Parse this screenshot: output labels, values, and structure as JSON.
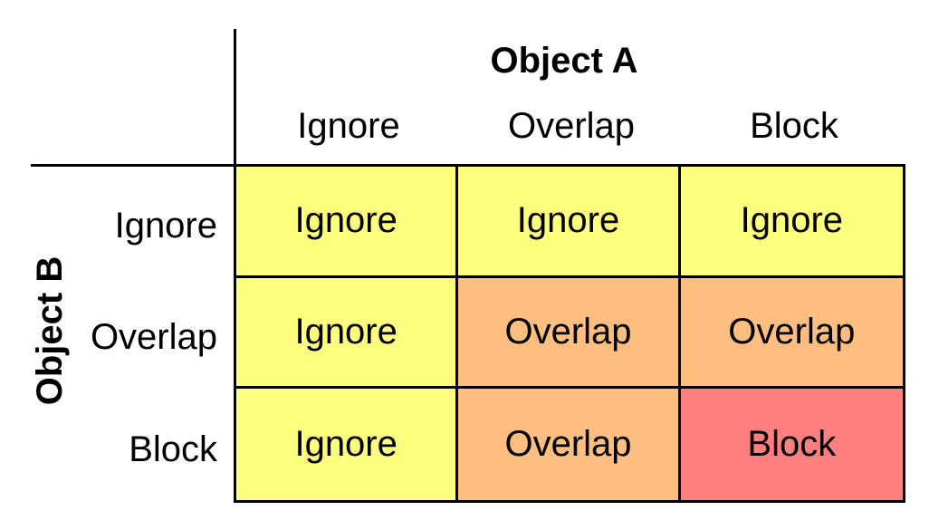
{
  "object_a_title": "Object A",
  "object_b_title": "Object B",
  "columns": [
    "Ignore",
    "Overlap",
    "Block"
  ],
  "rows": [
    "Ignore",
    "Overlap",
    "Block"
  ],
  "cells": [
    [
      "Ignore",
      "Ignore",
      "Ignore"
    ],
    [
      "Ignore",
      "Overlap",
      "Overlap"
    ],
    [
      "Ignore",
      "Overlap",
      "Block"
    ]
  ],
  "colors": {
    "Ignore": "#fefe7e",
    "Overlap": "#fdbe7f",
    "Block": "#ff7e7e"
  }
}
